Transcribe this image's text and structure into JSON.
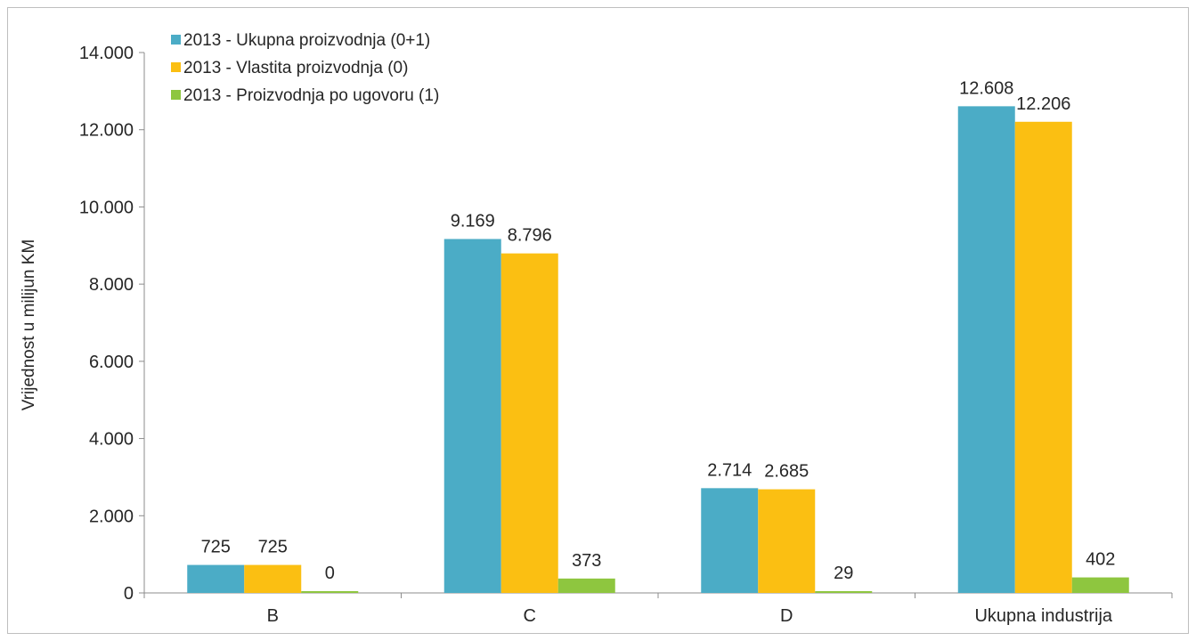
{
  "chart_data": {
    "type": "bar",
    "categories": [
      "B",
      "C",
      "D",
      "Ukupna industrija"
    ],
    "series": [
      {
        "name": "2013 - Ukupna proizvodnja (0+1)",
        "values": [
          725,
          9169,
          2714,
          12608
        ],
        "labels": [
          "725",
          "9.169",
          "2.714",
          "12.608"
        ],
        "color": "#4bacc6"
      },
      {
        "name": "2013 - Vlastita proizvodnja (0)",
        "values": [
          725,
          8796,
          2685,
          12206
        ],
        "labels": [
          "725",
          "8.796",
          "2.685",
          "12.206"
        ],
        "color": "#fbbf12"
      },
      {
        "name": "2013 - Proizvodnja po ugovoru (1)",
        "values": [
          0,
          373,
          29,
          402
        ],
        "labels": [
          "0",
          "373",
          "29",
          "402"
        ],
        "color": "#8ec63f"
      }
    ],
    "ylabel": "Vrijednost u milijun KM",
    "ylim": [
      0,
      14000
    ],
    "yticks": [
      0,
      2000,
      4000,
      6000,
      8000,
      10000,
      12000,
      14000
    ],
    "ytick_labels": [
      "0",
      "2.000",
      "4.000",
      "6.000",
      "8.000",
      "10.000",
      "12.000",
      "14.000"
    ],
    "grid": false,
    "legend_position": "top-left"
  }
}
